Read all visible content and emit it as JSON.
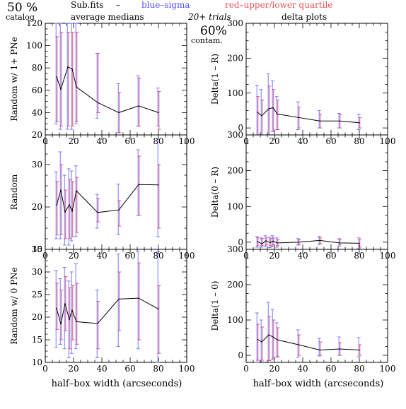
{
  "header": {
    "percent": "50 %",
    "catalog": "catalog",
    "subfits": "Sub.fits",
    "dash": "–",
    "blue_sigma": "blue–sigma",
    "red_quartile": "red–upper/lower quartile",
    "average_medians": "average medians",
    "trials": "20+ trials",
    "contam_percent": "60%",
    "contam": "contam.",
    "delta_plots": "delta plots"
  },
  "colors": {
    "sigma": "#6b6bff",
    "quartile": "#d6457a",
    "line": "#000000"
  },
  "xlabel_left": "half–box width (arcseconds)",
  "xlabel_right": "half–box width (arcseconds)",
  "chart_data": [
    {
      "type": "line",
      "panel": "top-left",
      "ylabel": "Random w/ 1+ PNe",
      "xlim": [
        0,
        100
      ],
      "ylim": [
        20,
        120
      ],
      "xticks": [
        "0",
        "20",
        "40",
        "60",
        "80",
        "100"
      ],
      "yticks": [
        "20",
        "40",
        "60",
        "80",
        "100",
        "120"
      ],
      "x": [
        8,
        11,
        16,
        19,
        22,
        37,
        52,
        66,
        80
      ],
      "y": [
        72,
        61,
        81,
        79,
        63,
        49,
        40,
        46,
        40
      ],
      "sigma": [
        [
          30,
          120
        ],
        [
          25,
          120
        ],
        [
          25,
          120
        ],
        [
          25,
          120
        ],
        [
          30,
          120
        ],
        [
          35,
          93
        ],
        [
          22,
          66
        ],
        [
          28,
          73
        ],
        [
          28,
          62
        ]
      ],
      "quartile": [
        [
          32,
          108
        ],
        [
          28,
          112
        ],
        [
          28,
          112
        ],
        [
          28,
          112
        ],
        [
          32,
          112
        ],
        [
          40,
          93
        ],
        [
          22,
          58
        ],
        [
          28,
          71
        ],
        [
          25,
          59
        ]
      ]
    },
    {
      "type": "line",
      "panel": "top-right",
      "ylabel": "Delta(1 – R)",
      "xlim": [
        0,
        100
      ],
      "ylim": [
        -20,
        300
      ],
      "xticks": [
        "0",
        "20",
        "40",
        "60",
        "80",
        "100"
      ],
      "yticks": [
        "0",
        "100",
        "200",
        "300"
      ],
      "x": [
        8,
        11,
        16,
        19,
        22,
        37,
        52,
        66,
        80
      ],
      "y": [
        45,
        35,
        55,
        58,
        40,
        30,
        20,
        20,
        15
      ],
      "sigma": [
        [
          -20,
          122
        ],
        [
          -20,
          110
        ],
        [
          -25,
          155
        ],
        [
          -10,
          135
        ],
        [
          -5,
          90
        ],
        [
          -5,
          75
        ],
        [
          0,
          50
        ],
        [
          0,
          42
        ],
        [
          -5,
          40
        ]
      ],
      "quartile": [
        [
          -20,
          90
        ],
        [
          -20,
          80
        ],
        [
          -20,
          120
        ],
        [
          -10,
          110
        ],
        [
          -5,
          80
        ],
        [
          0,
          60
        ],
        [
          0,
          40
        ],
        [
          0,
          38
        ],
        [
          0,
          30
        ]
      ]
    },
    {
      "type": "line",
      "panel": "middle-left",
      "ylabel": "Random",
      "xlim": [
        0,
        100
      ],
      "ylim": [
        10,
        37
      ],
      "xticks": [
        "0",
        "20",
        "40",
        "60",
        "80",
        "100"
      ],
      "yticks": [
        "10",
        "20",
        "30"
      ],
      "x": [
        8,
        11,
        14,
        17,
        19,
        22,
        37,
        52,
        66,
        80
      ],
      "y": [
        20.4,
        24,
        18.8,
        20.5,
        19,
        23.8,
        18.7,
        19.3,
        25.3,
        25.2
      ],
      "sigma": [
        [
          12.5,
          28.3
        ],
        [
          12.5,
          33
        ],
        [
          11,
          27.5
        ],
        [
          11,
          29
        ],
        [
          12,
          28.5
        ],
        [
          13,
          29.7
        ],
        [
          15,
          23
        ],
        [
          13.5,
          25.4
        ],
        [
          18,
          33.5
        ],
        [
          13,
          35.5
        ]
      ],
      "quartile": [
        [
          13.5,
          26
        ],
        [
          13.5,
          30
        ],
        [
          12.5,
          24
        ],
        [
          12.5,
          26.5
        ],
        [
          13,
          26
        ],
        [
          14,
          27
        ],
        [
          16.5,
          22
        ],
        [
          15.5,
          21.5
        ],
        [
          18,
          32
        ],
        [
          15,
          30
        ]
      ]
    },
    {
      "type": "line",
      "panel": "middle-right",
      "ylabel": "Delta(0 – R)",
      "xlim": [
        0,
        100
      ],
      "ylim": [
        -20,
        300
      ],
      "xticks": [
        "0",
        "20",
        "40",
        "60",
        "80",
        "100"
      ],
      "yticks": [
        "0",
        "100",
        "200",
        "300"
      ],
      "x": [
        8,
        11,
        14,
        17,
        19,
        22,
        37,
        52,
        66,
        80
      ],
      "y": [
        2,
        -5,
        4,
        -1,
        3,
        -2,
        0,
        5,
        -2,
        -3
      ],
      "sigma": [
        [
          -14,
          16
        ],
        [
          -14,
          12
        ],
        [
          -12,
          18
        ],
        [
          -15,
          14
        ],
        [
          -12,
          18
        ],
        [
          -14,
          12
        ],
        [
          -8,
          10
        ],
        [
          -6,
          16
        ],
        [
          -12,
          10
        ],
        [
          -18,
          12
        ]
      ],
      "quartile": [
        [
          -10,
          12
        ],
        [
          -10,
          10
        ],
        [
          -8,
          12
        ],
        [
          -10,
          10
        ],
        [
          -8,
          12
        ],
        [
          -10,
          8
        ],
        [
          -6,
          8
        ],
        [
          -4,
          12
        ],
        [
          -8,
          8
        ],
        [
          -14,
          8
        ]
      ]
    },
    {
      "type": "line",
      "panel": "bottom-left",
      "ylabel": "Random w/ 0 PNe",
      "xlim": [
        0,
        100
      ],
      "ylim": [
        10,
        35
      ],
      "xticks": [
        "0",
        "20",
        "40",
        "60",
        "80",
        "100"
      ],
      "yticks": [
        "10",
        "15",
        "20",
        "25",
        "30",
        "35"
      ],
      "x": [
        8,
        11,
        14,
        17,
        19,
        22,
        37,
        52,
        66,
        80
      ],
      "y": [
        22,
        18.5,
        23,
        19.5,
        21.5,
        19,
        18.6,
        24,
        24.2,
        21.8
      ],
      "sigma": [
        [
          13.3,
          30.3
        ],
        [
          14,
          28.5
        ],
        [
          13,
          31
        ],
        [
          11,
          28
        ],
        [
          12,
          30
        ],
        [
          13,
          31.8
        ],
        [
          11,
          26
        ],
        [
          13.5,
          34
        ],
        [
          13,
          34.5
        ],
        [
          10,
          34.5
        ]
      ],
      "quartile": [
        [
          17.3,
          27.5
        ],
        [
          15,
          26
        ],
        [
          17,
          29
        ],
        [
          13,
          26.5
        ],
        [
          15,
          27
        ],
        [
          14,
          27.5
        ],
        [
          13,
          23.5
        ],
        [
          17,
          30
        ],
        [
          15,
          32
        ],
        [
          12,
          27
        ]
      ]
    },
    {
      "type": "line",
      "panel": "bottom-right",
      "ylabel": "Delta(1 – 0)",
      "xlim": [
        0,
        100
      ],
      "ylim": [
        -20,
        300
      ],
      "xticks": [
        "0",
        "20",
        "40",
        "60",
        "80",
        "100"
      ],
      "yticks": [
        "0",
        "100",
        "200",
        "300"
      ],
      "x": [
        8,
        11,
        16,
        19,
        22,
        37,
        52,
        66,
        80
      ],
      "y": [
        45,
        38,
        58,
        52,
        44,
        30,
        15,
        18,
        15
      ],
      "sigma": [
        [
          -20,
          120
        ],
        [
          -18,
          100
        ],
        [
          -22,
          150
        ],
        [
          -12,
          130
        ],
        [
          -5,
          92
        ],
        [
          -6,
          72
        ],
        [
          -2,
          48
        ],
        [
          0,
          52
        ],
        [
          -4,
          50
        ]
      ],
      "quartile": [
        [
          -14,
          88
        ],
        [
          -14,
          80
        ],
        [
          -15,
          110
        ],
        [
          -8,
          100
        ],
        [
          -4,
          78
        ],
        [
          0,
          58
        ],
        [
          0,
          38
        ],
        [
          0,
          36
        ],
        [
          0,
          30
        ]
      ]
    }
  ]
}
